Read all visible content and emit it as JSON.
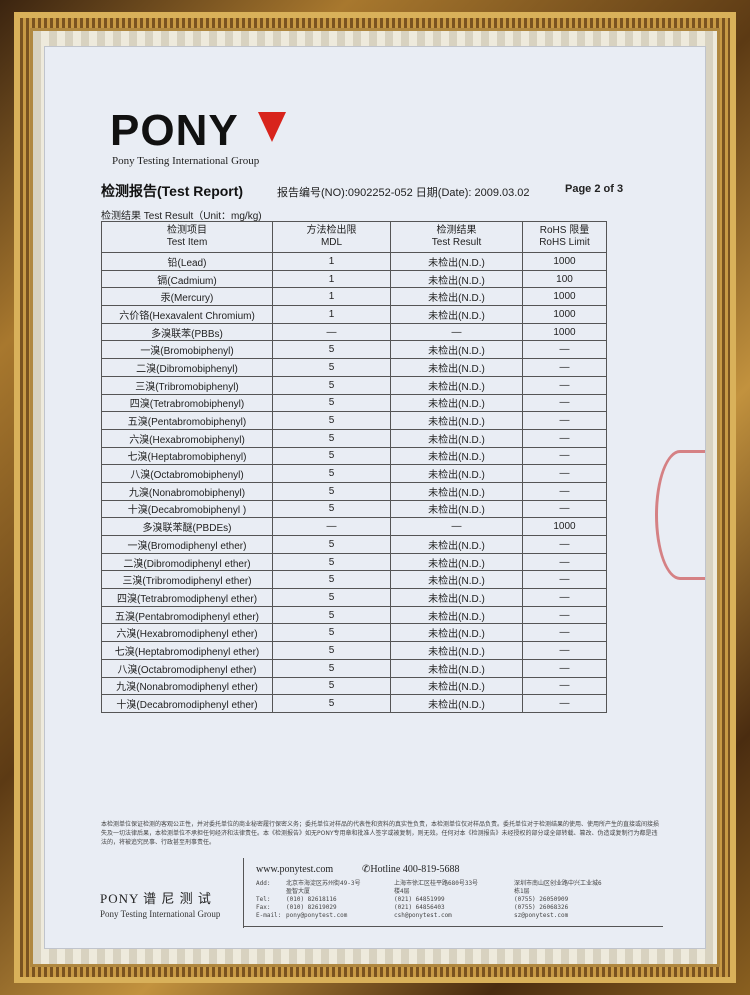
{
  "brand": {
    "logo": "PONY",
    "subtitle": "Pony Testing International Group"
  },
  "report": {
    "title": "检测报告(Test Report)",
    "number": "报告编号(NO):0902252-052",
    "date": "日期(Date): 2009.03.02",
    "page": "Page 2 of 3",
    "unit": "检测结果 Test Result（Unit：mg/kg)"
  },
  "table": {
    "headers": [
      [
        "检测项目",
        "Test Item"
      ],
      [
        "方法检出限",
        "MDL"
      ],
      [
        "检测结果",
        "Test Result"
      ],
      [
        "RoHS 限量",
        "RoHS Limit"
      ]
    ],
    "rows": [
      [
        "铅(Lead)",
        "1",
        "未检出(N.D.)",
        "1000"
      ],
      [
        "镉(Cadmium)",
        "1",
        "未检出(N.D.)",
        "100"
      ],
      [
        "汞(Mercury)",
        "1",
        "未检出(N.D.)",
        "1000"
      ],
      [
        "六价铬(Hexavalent Chromium)",
        "1",
        "未检出(N.D.)",
        "1000"
      ],
      [
        "多溴联苯(PBBs)",
        "—",
        "—",
        "1000"
      ],
      [
        "一溴(Bromobiphenyl)",
        "5",
        "未检出(N.D.)",
        "—"
      ],
      [
        "二溴(Dibromobiphenyl)",
        "5",
        "未检出(N.D.)",
        "—"
      ],
      [
        "三溴(Tribromobiphenyl)",
        "5",
        "未检出(N.D.)",
        "—"
      ],
      [
        "四溴(Tetrabromobiphenyl)",
        "5",
        "未检出(N.D.)",
        "—"
      ],
      [
        "五溴(Pentabromobiphenyl)",
        "5",
        "未检出(N.D.)",
        "—"
      ],
      [
        "六溴(Hexabromobiphenyl)",
        "5",
        "未检出(N.D.)",
        "—"
      ],
      [
        "七溴(Heptabromobiphenyl)",
        "5",
        "未检出(N.D.)",
        "—"
      ],
      [
        "八溴(Octabromobiphenyl)",
        "5",
        "未检出(N.D.)",
        "—"
      ],
      [
        "九溴(Nonabromobiphenyl)",
        "5",
        "未检出(N.D.)",
        "—"
      ],
      [
        "十溴(Decabromobiphenyl )",
        "5",
        "未检出(N.D.)",
        "—"
      ],
      [
        "多溴联苯醚(PBDEs)",
        "—",
        "—",
        "1000"
      ],
      [
        "一溴(Bromodiphenyl ether)",
        "5",
        "未检出(N.D.)",
        "—"
      ],
      [
        "二溴(Dibromodiphenyl ether)",
        "5",
        "未检出(N.D.)",
        "—"
      ],
      [
        "三溴(Tribromodiphenyl ether)",
        "5",
        "未检出(N.D.)",
        "—"
      ],
      [
        "四溴(Tetrabromodiphenyl ether)",
        "5",
        "未检出(N.D.)",
        "—"
      ],
      [
        "五溴(Pentabromodiphenyl ether)",
        "5",
        "未检出(N.D.)",
        "—"
      ],
      [
        "六溴(Hexabromodiphenyl ether)",
        "5",
        "未检出(N.D.)",
        "—"
      ],
      [
        "七溴(Heptabromodiphenyl ether)",
        "5",
        "未检出(N.D.)",
        "—"
      ],
      [
        "八溴(Octabromodiphenyl ether)",
        "5",
        "未检出(N.D.)",
        "—"
      ],
      [
        "九溴(Nonabromodiphenyl ether)",
        "5",
        "未检出(N.D.)",
        "—"
      ],
      [
        "十溴(Decabromodiphenyl ether)",
        "5",
        "未检出(N.D.)",
        "—"
      ]
    ]
  },
  "disclaimer": "本检测单位保证检测的客观公正性，并对委托单位的商业秘密履行保密义务；委托单位对样品的代表性和资料的真实性负责，本检测单位仅对样品负责。委托单位对于检测结果的使用、使用所产生的直接或间接损失及一切法律后果，本检测单位不承担任何经济和法律责任。本《检测报告》如无PONY专用章和批准人签字或被复制，则无效。任何对本《检测报告》未经授权的部分或全部转载、篡改、伪造或复制行为都是违法的，将被追究民事、行政甚至刑事责任。",
  "footer": {
    "brand": "PONY 谱 尼 测 试",
    "subtitle": "Pony Testing International Group",
    "website": "www.ponytest.com",
    "hotline": "✆Hotline 400-819-5688",
    "labels": [
      "Add:",
      "Tel:",
      "Fax:",
      "E-mail:"
    ],
    "offices": [
      {
        "add": "北京市海淀区苏州街49-3号",
        "add2": "盈智大厦",
        "tel": "(010) 82618116",
        "fax": "(010) 82619029",
        "email": "pony@ponytest.com"
      },
      {
        "add": "上海市徐汇区桂平路680号33号",
        "add2": "楼4层",
        "tel": "(021) 64851999",
        "fax": "(021) 64856403",
        "email": "csh@ponytest.com"
      },
      {
        "add": "深圳市南山区创业路中兴工业城6",
        "add2": "栋1层",
        "tel": "(0755) 26050909",
        "fax": "(0755) 26068326",
        "email": "sz@ponytest.com"
      }
    ]
  },
  "colors": {
    "logo_triangle": "#d8241c",
    "paper": "#e9edf4",
    "frame": "#a8782e"
  }
}
